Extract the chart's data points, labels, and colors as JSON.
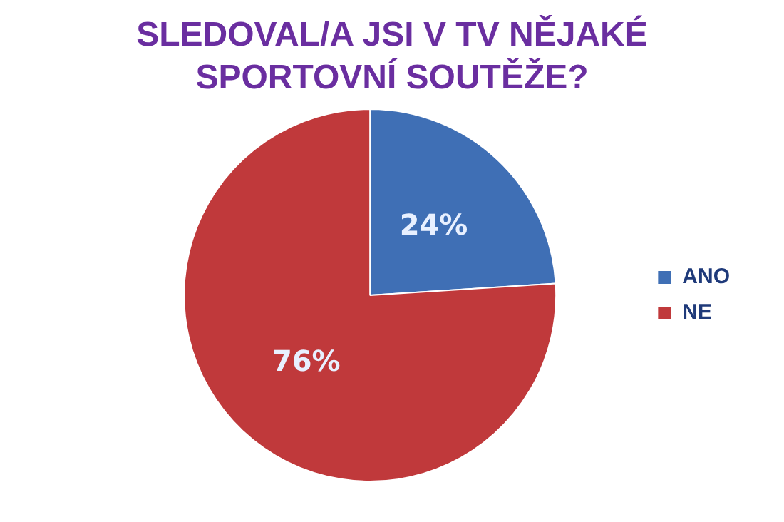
{
  "chart_data": {
    "type": "pie",
    "title": "SLEDOVAL/A JSI V TV NĚJAKÉ SPORTOVNÍ SOUTĚŽE?",
    "categories": [
      "ANO",
      "NE"
    ],
    "values": [
      24,
      76
    ],
    "colors": [
      "#3f6fb5",
      "#c0393b"
    ],
    "value_labels": [
      "24%",
      "76%"
    ],
    "legend": "right"
  }
}
